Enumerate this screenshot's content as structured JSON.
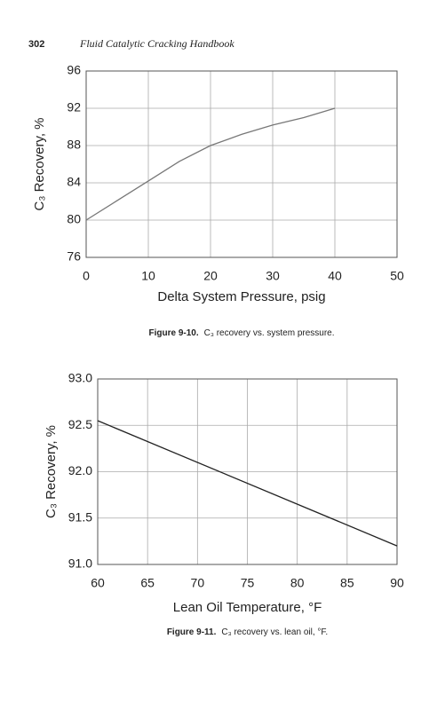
{
  "header": {
    "page": "302",
    "title": "Fluid Catalytic Cracking Handbook"
  },
  "chart_data": [
    {
      "type": "line",
      "figure": "Figure 9-10.",
      "caption": "C₃ recovery vs. system pressure.",
      "xlabel": "Delta System Pressure, psig",
      "ylabel": "C₃ Recovery, %",
      "x": [
        0,
        5,
        10,
        15,
        20,
        25,
        30,
        35,
        40
      ],
      "values": [
        80,
        82.1,
        84.2,
        86.3,
        88,
        89.2,
        90.2,
        91,
        92
      ],
      "color": "#777777",
      "grid": true,
      "xlim": [
        0,
        50
      ],
      "xticks": [
        0,
        10,
        20,
        30,
        40,
        50
      ],
      "ylim": [
        76,
        96
      ],
      "yticks": [
        76,
        80,
        84,
        88,
        92,
        96
      ]
    },
    {
      "type": "line",
      "figure": "Figure 9-11.",
      "caption": "C₃ recovery vs. lean oil, °F.",
      "xlabel": "Lean Oil Temperature, °F",
      "ylabel": "C₃ Recovery, %",
      "x": [
        60,
        90
      ],
      "values": [
        92.55,
        91.2
      ],
      "color": "#222222",
      "grid": true,
      "xlim": [
        60,
        90
      ],
      "xticks": [
        60,
        65,
        70,
        75,
        80,
        85,
        90
      ],
      "ylim": [
        91,
        93
      ],
      "yticks": [
        {
          "value": 91,
          "label": "91.0"
        },
        91.5,
        {
          "value": 92,
          "label": "92.0"
        },
        92.5,
        {
          "value": 93,
          "label": "93.0"
        }
      ]
    }
  ]
}
